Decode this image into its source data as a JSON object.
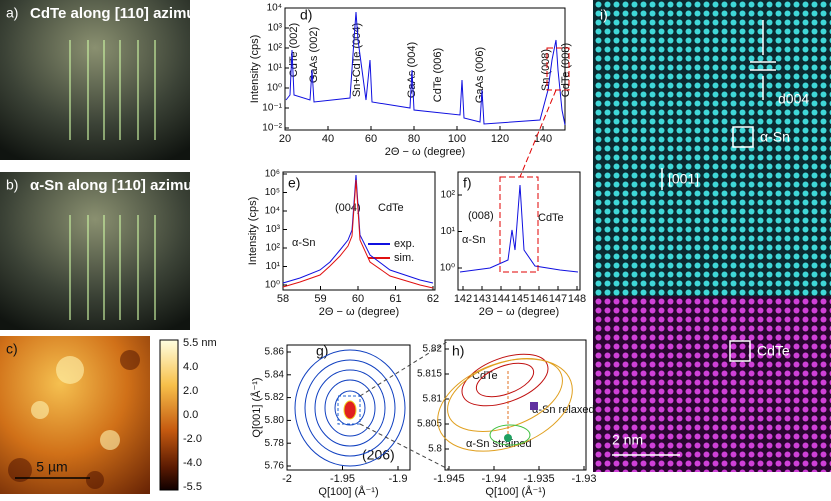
{
  "panels": {
    "a": {
      "label": "a)",
      "title": "CdTe along [110] azimuth"
    },
    "b": {
      "label": "b)",
      "title": "α-Sn along [110] azimuth"
    },
    "c": {
      "label": "c)",
      "colorbar_ticks": [
        "5.5 nm",
        "4.0",
        "2.0",
        "0.0",
        "-2.0",
        "-4.0",
        "-5.5"
      ],
      "scale_bar": "5 µm"
    },
    "d": {
      "label": "d)",
      "xlabel": "2Θ − ω (degree)",
      "ylabel": "Intensity (cps)",
      "xticks": [
        "20",
        "40",
        "60",
        "80",
        "100",
        "120",
        "140"
      ],
      "yticks": [
        "10⁴",
        "10³",
        "10²",
        "10¹",
        "10⁰",
        "10⁻¹",
        "10⁻²"
      ],
      "peaks": [
        "CdTe (002)",
        "GaAs (002)",
        "Sn+CdTe (004)",
        "GaAs (004)",
        "CdTe (006)",
        "GaAs (006)",
        "Sn (008)",
        "CdTe (008)"
      ]
    },
    "e": {
      "label": "e)",
      "xlabel": "2Θ − ω (degree)",
      "ylabel": "Intensity (cps)",
      "xticks": [
        "58",
        "59",
        "60",
        "61",
        "62"
      ],
      "yticks": [
        "10⁶",
        "10⁵",
        "10⁴",
        "10³",
        "10²",
        "10¹",
        "10⁰"
      ],
      "annotations": [
        "(004)",
        "CdTe",
        "α-Sn"
      ],
      "legend": [
        "exp.",
        "sim."
      ]
    },
    "f": {
      "label": "f)",
      "xlabel": "2Θ − ω (degree)",
      "xticks": [
        "142",
        "143",
        "144",
        "145",
        "146",
        "147",
        "148"
      ],
      "yticks": [
        "10²",
        "10¹",
        "10⁰"
      ],
      "annotations": [
        "(008)",
        "CdTe",
        "α-Sn"
      ]
    },
    "g": {
      "label": "g)",
      "xlabel": "Q[100] (Å⁻¹)",
      "ylabel": "Q[001] (Å⁻¹)",
      "xticks": [
        "-2",
        "-1.95",
        "-1.9"
      ],
      "yticks": [
        "5.86",
        "5.84",
        "5.82",
        "5.80",
        "5.78",
        "5.76"
      ],
      "annotation": "(206)"
    },
    "h": {
      "label": "h)",
      "xlabel": "Q[100] (Å⁻¹)",
      "xticks": [
        "-1.945",
        "-1.94",
        "-1.935",
        "-1.93"
      ],
      "yticks": [
        "5.82",
        "5.815",
        "5.81",
        "5.805",
        "5.8"
      ],
      "annotations": [
        "CdTe",
        "α-Sn relaxed",
        "α-Sn strained"
      ]
    },
    "i": {
      "label": "i)",
      "annotations": [
        "d004",
        "α-Sn",
        "[001]",
        "CdTe",
        "2 nm"
      ]
    }
  }
}
